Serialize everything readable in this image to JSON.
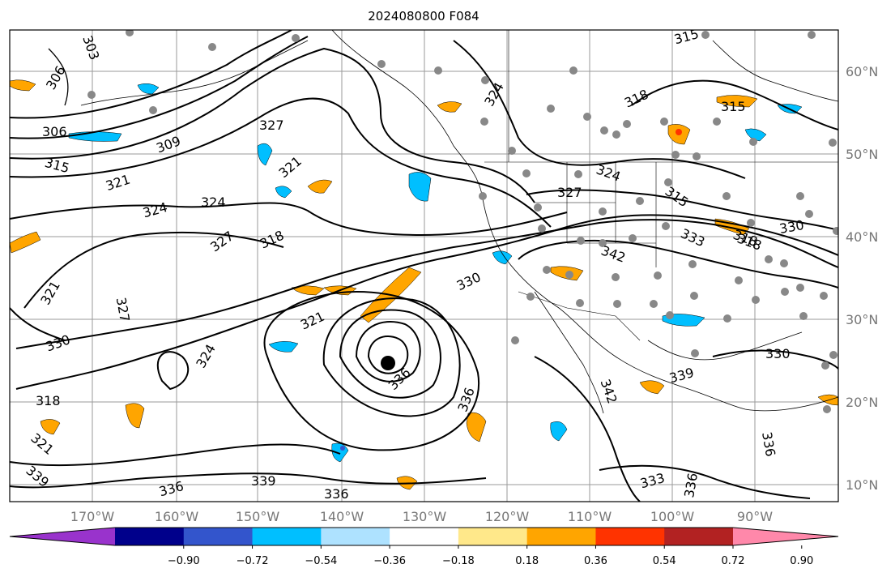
{
  "title": "2024080800 F084",
  "map": {
    "lon_ticks": [
      "170°W",
      "160°W",
      "150°W",
      "140°W",
      "130°W",
      "120°W",
      "110°W",
      "100°W",
      "90°W"
    ],
    "lat_ticks": [
      "60°N",
      "50°N",
      "40°N",
      "30°N",
      "20°N",
      "10°N"
    ],
    "grid": true,
    "contour_labels": [
      "303",
      "306",
      "306",
      "309",
      "315",
      "321",
      "324",
      "324",
      "327",
      "327",
      "318",
      "321",
      "321",
      "321",
      "324",
      "327",
      "330",
      "318",
      "321",
      "339",
      "336",
      "339",
      "336",
      "330",
      "336",
      "336",
      "324",
      "327",
      "318",
      "315",
      "324",
      "315",
      "333",
      "318",
      "342",
      "342",
      "330",
      "339",
      "330",
      "333",
      "336",
      "336",
      "318",
      "315"
    ],
    "storm_marker": "black-dot",
    "station_marker": "grey-dot"
  },
  "colorbar": {
    "tick_labels": [
      "−0.90",
      "−0.72",
      "−0.54",
      "−0.36",
      "−0.18",
      "0.18",
      "0.36",
      "0.54",
      "0.72",
      "0.90"
    ],
    "colors": [
      "#9933cc",
      "#00008b",
      "#3355cc",
      "#00bfff",
      "#aee2ff",
      "#ffffff",
      "#ffe88a",
      "#ffa500",
      "#ff3300",
      "#b22222",
      "#ff88aa"
    ],
    "extend": "both"
  }
}
